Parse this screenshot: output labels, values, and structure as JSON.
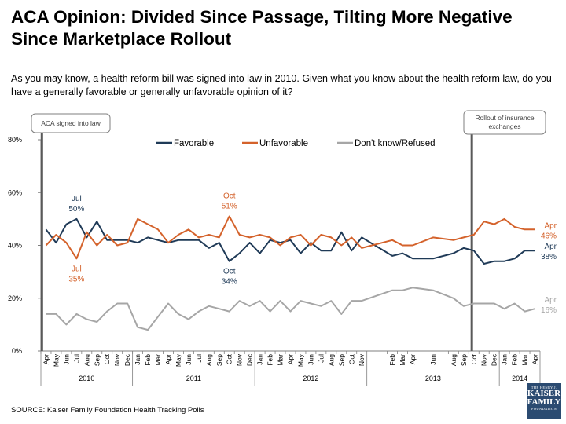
{
  "header": {
    "title": "ACA Opinion: Divided Since Passage, Tilting More Negative Since Marketplace Rollout",
    "subtitle": "As you may know, a health reform bill was signed into law in 2010. Given what you know about the health reform law, do you have a generally favorable or generally unfavorable opinion of it?"
  },
  "footer": {
    "source": "SOURCE: Kaiser Family Foundation Health Tracking Polls",
    "logo_top": "THE HENRY J.",
    "logo_main_1": "KAISER",
    "logo_main_2": "FAMILY",
    "logo_bottom": "FOUNDATION",
    "logo_color": "#2b4b71"
  },
  "chart_data": {
    "type": "line",
    "ylim": [
      0,
      80
    ],
    "y_ticks": [
      "0%",
      "20%",
      "40%",
      "60%",
      "80%"
    ],
    "grid": false,
    "legend_position": "top",
    "x": [
      "Apr 2010",
      "May 2010",
      "Jun 2010",
      "Jul 2010",
      "Aug 2010",
      "Sep 2010",
      "Oct 2010",
      "Nov 2010",
      "Dec 2010",
      "Jan 2011",
      "Feb 2011",
      "Mar 2011",
      "Apr 2011",
      "May 2011",
      "Jun 2011",
      "Jul 2011",
      "Aug 2011",
      "Sep 2011",
      "Oct 2011",
      "Nov 2011",
      "Dec 2011",
      "Jan 2012",
      "Feb 2012",
      "Mar 2012",
      "Apr 2012",
      "May 2012",
      "Jun 2012",
      "Jul 2012",
      "Aug 2012",
      "Sep 2012",
      "Oct 2012",
      "Nov 2012",
      "Feb 2013",
      "Mar 2013",
      "Apr 2013",
      "Jun 2013",
      "Aug 2013",
      "Sep 2013",
      "Oct 2013",
      "Nov 2013",
      "Dec 2013",
      "Jan 2014",
      "Feb 2014",
      "Mar 2014",
      "Apr 2014"
    ],
    "x_tick_labels": [
      "Apr",
      "May",
      "Jun",
      "Jul",
      "Aug",
      "Sep",
      "Oct",
      "Nov",
      "Dec",
      "Jan",
      "Feb",
      "Mar",
      "Apr",
      "May",
      "Jun",
      "Jul",
      "Aug",
      "Sep",
      "Oct",
      "Nov",
      "Dec",
      "Jan",
      "Feb",
      "Mar",
      "Apr",
      "May",
      "Jun",
      "Jul",
      "Aug",
      "Sep",
      "Oct",
      "Nov",
      "Feb",
      "Mar",
      "Apr",
      "Jun",
      "Aug",
      "Sep",
      "Oct",
      "Nov",
      "Dec",
      "Jan",
      "Feb",
      "Mar",
      "Apr"
    ],
    "x_slots": [
      0,
      1,
      2,
      3,
      4,
      5,
      6,
      7,
      8,
      9,
      10,
      11,
      12,
      13,
      14,
      15,
      16,
      17,
      18,
      19,
      20,
      21,
      22,
      23,
      24,
      25,
      26,
      27,
      28,
      29,
      30,
      31,
      34,
      35,
      36,
      38,
      40,
      41,
      42,
      43,
      44,
      45,
      46,
      47,
      48
    ],
    "slot_count": 49,
    "years": [
      {
        "label": "2010",
        "from": 0,
        "to": 8
      },
      {
        "label": "2011",
        "from": 9,
        "to": 20
      },
      {
        "label": "2012",
        "from": 21,
        "to": 31
      },
      {
        "label": "2013",
        "from": 32,
        "to": 44
      },
      {
        "label": "2014",
        "from": 45,
        "to": 48
      }
    ],
    "series": [
      {
        "name": "Favorable",
        "color": "#1f3a57",
        "values": [
          46,
          41,
          48,
          50,
          43,
          49,
          42,
          42,
          42,
          41,
          43,
          42,
          41,
          42,
          42,
          42,
          39,
          41,
          34,
          37,
          41,
          37,
          42,
          41,
          42,
          37,
          41,
          38,
          38,
          45,
          38,
          43,
          36,
          37,
          35,
          35,
          37,
          39,
          38,
          33,
          34,
          34,
          35,
          38,
          38
        ]
      },
      {
        "name": "Unfavorable",
        "color": "#d4622b",
        "values": [
          40,
          44,
          41,
          35,
          45,
          40,
          44,
          40,
          41,
          50,
          48,
          46,
          41,
          44,
          46,
          43,
          44,
          43,
          51,
          44,
          43,
          44,
          43,
          40,
          43,
          44,
          40,
          44,
          43,
          40,
          43,
          39,
          42,
          40,
          40,
          43,
          42,
          43,
          44,
          49,
          48,
          50,
          47,
          46,
          46
        ]
      },
      {
        "name": "Don't know/Refused",
        "color": "#a6a6a6",
        "values": [
          14,
          14,
          10,
          14,
          12,
          11,
          15,
          18,
          18,
          9,
          8,
          13,
          18,
          14,
          12,
          15,
          17,
          16,
          15,
          19,
          17,
          19,
          15,
          19,
          15,
          19,
          18,
          17,
          19,
          14,
          19,
          19,
          23,
          23,
          24,
          23,
          20,
          17,
          18,
          18,
          18,
          16,
          18,
          15,
          16
        ]
      }
    ],
    "annotations": [
      {
        "series": "Favorable",
        "point": 3,
        "month": "Jul",
        "value": "50%",
        "color": "#1f3a57",
        "side": "above"
      },
      {
        "series": "Unfavorable",
        "point": 3,
        "month": "Jul",
        "value": "35%",
        "color": "#d4622b",
        "side": "below"
      },
      {
        "series": "Unfavorable",
        "point": 18,
        "month": "Oct",
        "value": "51%",
        "color": "#d4622b",
        "side": "above"
      },
      {
        "series": "Favorable",
        "point": 18,
        "month": "Oct",
        "value": "34%",
        "color": "#1f3a57",
        "side": "below"
      },
      {
        "series": "Unfavorable",
        "point": 44,
        "month": "Apr",
        "value": "46%",
        "color": "#d4622b",
        "side": "end"
      },
      {
        "series": "Favorable",
        "point": 44,
        "month": "Apr",
        "value": "38%",
        "color": "#1f3a57",
        "side": "end"
      },
      {
        "series": "Don't know/Refused",
        "point": 44,
        "month": "Apr",
        "value": "16%",
        "color": "#a6a6a6",
        "side": "end"
      }
    ],
    "events": [
      {
        "label": "ACA signed into law",
        "slot": -0.4
      },
      {
        "label": "Rollout of insurance exchanges",
        "slot": 41.8
      }
    ]
  }
}
